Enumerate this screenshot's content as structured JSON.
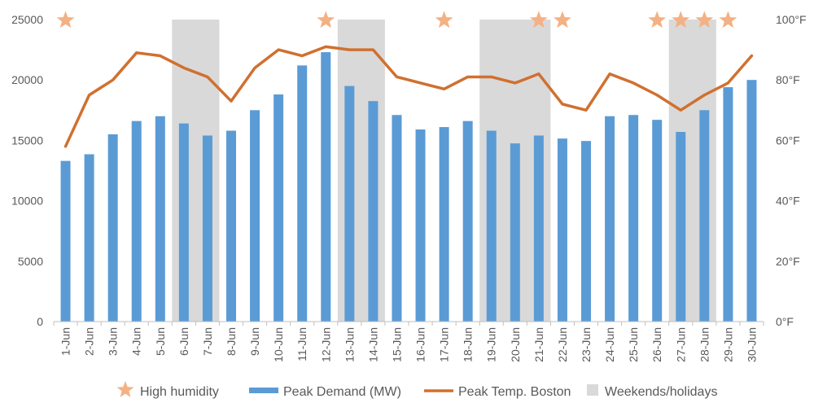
{
  "chart_data": {
    "type": "bar",
    "categories": [
      "1-Jun",
      "2-Jun",
      "3-Jun",
      "4-Jun",
      "5-Jun",
      "6-Jun",
      "7-Jun",
      "8-Jun",
      "9-Jun",
      "10-Jun",
      "11-Jun",
      "12-Jun",
      "13-Jun",
      "14-Jun",
      "15-Jun",
      "16-Jun",
      "17-Jun",
      "18-Jun",
      "19-Jun",
      "20-Jun",
      "21-Jun",
      "22-Jun",
      "23-Jun",
      "24-Jun",
      "25-Jun",
      "26-Jun",
      "27-Jun",
      "28-Jun",
      "29-Jun",
      "30-Jun"
    ],
    "series": [
      {
        "name": "Peak Demand (MW)",
        "type": "bar",
        "axis": "left",
        "color": "#5b9bd5",
        "values": [
          13300,
          13850,
          15500,
          16600,
          17000,
          16400,
          15400,
          15800,
          17500,
          18800,
          21200,
          22300,
          19500,
          18250,
          17100,
          15900,
          16100,
          16600,
          15800,
          14750,
          15400,
          15150,
          14950,
          17000,
          17100,
          16700,
          15700,
          17500,
          19400,
          20000
        ]
      },
      {
        "name": "Peak Temp. Boston",
        "type": "line",
        "axis": "right",
        "color": "#d0702f",
        "values": [
          58,
          75,
          80,
          89,
          88,
          84,
          81,
          73,
          84,
          90,
          88,
          91,
          90,
          90,
          81,
          79,
          77,
          81,
          81,
          79,
          82,
          72,
          70,
          82,
          79,
          75,
          70,
          75,
          79,
          88
        ]
      }
    ],
    "high_humidity_days": [
      "1-Jun",
      "12-Jun",
      "17-Jun",
      "21-Jun",
      "22-Jun",
      "26-Jun",
      "27-Jun",
      "28-Jun",
      "29-Jun"
    ],
    "weekends_holidays": [
      "6-Jun",
      "7-Jun",
      "13-Jun",
      "14-Jun",
      "19-Jun",
      "20-Jun",
      "21-Jun",
      "27-Jun",
      "28-Jun"
    ],
    "y_left": {
      "min": 0,
      "max": 25000,
      "ticks": [
        "0",
        "5000",
        "10000",
        "15000",
        "20000",
        "25000"
      ]
    },
    "y_right": {
      "min": 0,
      "max": 100,
      "ticks": [
        "0°F",
        "20°F",
        "40°F",
        "60°F",
        "80°F",
        "100°F"
      ]
    },
    "grid": false,
    "legend": {
      "position": "bottom",
      "items": [
        {
          "label": "High humidity",
          "symbol": "star",
          "color": "#f4b183"
        },
        {
          "label": "Peak Demand (MW)",
          "symbol": "bar",
          "color": "#5b9bd5"
        },
        {
          "label": "Peak Temp. Boston",
          "symbol": "line",
          "color": "#d0702f"
        },
        {
          "label": "Weekends/holidays",
          "symbol": "square",
          "color": "#d9d9d9"
        }
      ]
    },
    "colors": {
      "star": "#f4b183",
      "shade": "#d9d9d9",
      "axis": "#bfbfbf",
      "text": "#595959"
    }
  }
}
